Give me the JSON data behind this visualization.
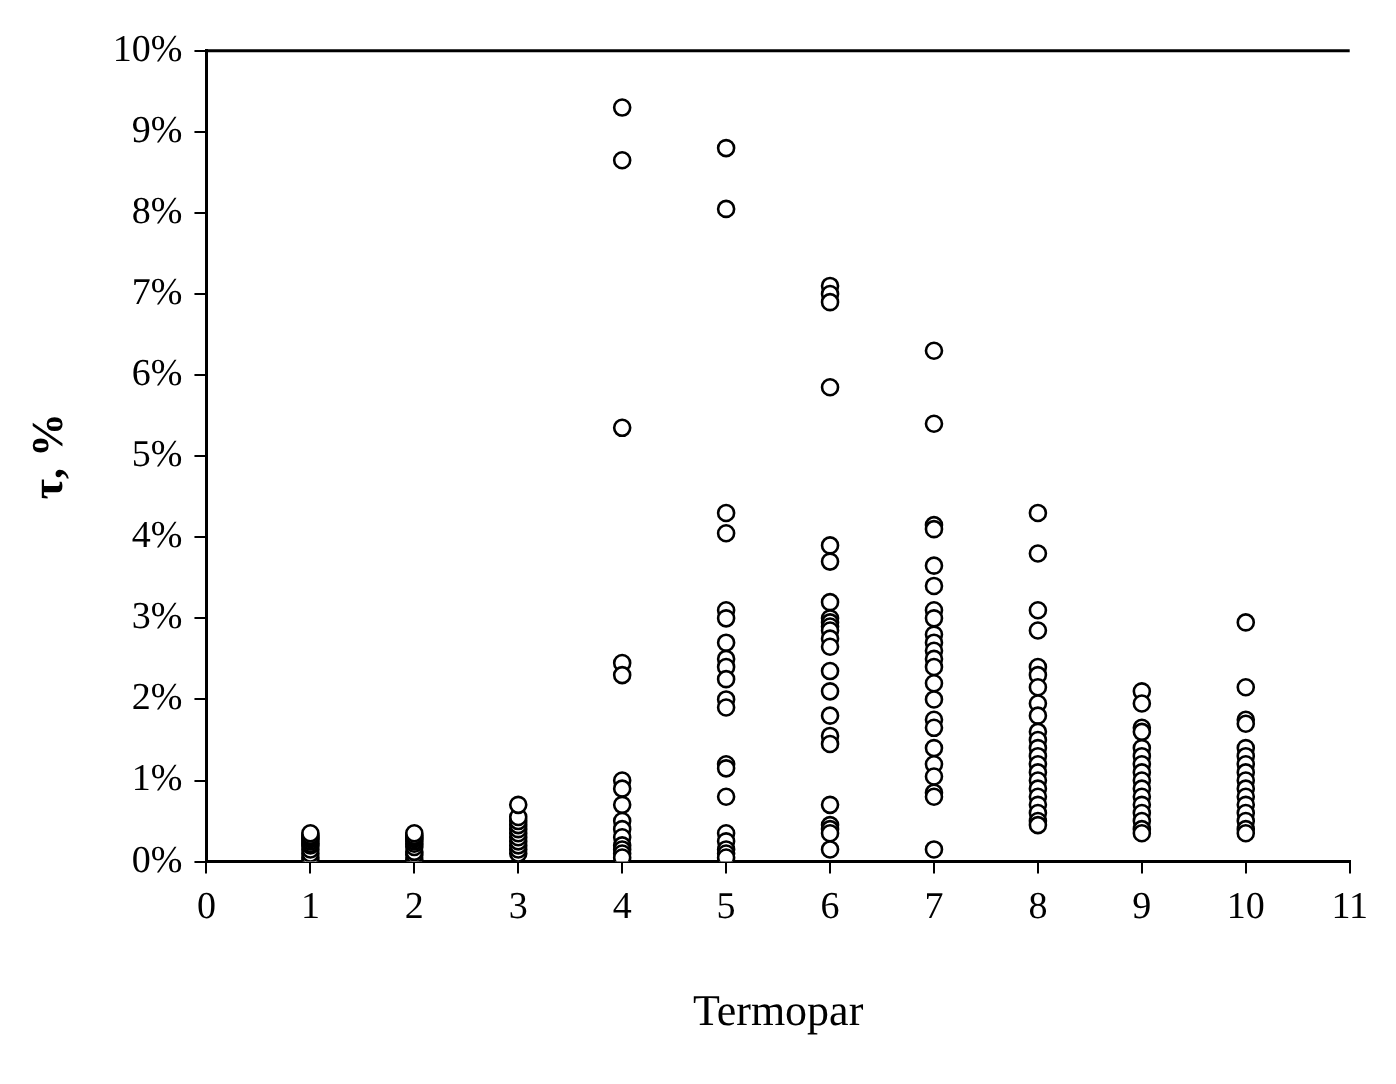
{
  "chart_data": {
    "type": "scatter",
    "xlabel": "Termopar",
    "ylabel": "τ, %",
    "x": [
      1,
      1,
      1,
      1,
      1,
      1,
      1,
      1,
      1,
      1,
      1,
      2,
      2,
      2,
      2,
      2,
      2,
      2,
      2,
      2,
      2,
      3,
      3,
      3,
      3,
      3,
      3,
      3,
      3,
      3,
      3,
      3,
      4,
      4,
      4,
      4,
      4,
      4,
      4,
      4,
      4,
      4,
      4,
      4,
      4,
      4,
      4,
      5,
      5,
      5,
      5,
      5,
      5,
      5,
      5,
      5,
      5,
      5,
      5,
      5,
      5,
      5,
      5,
      5,
      5,
      5,
      5,
      6,
      6,
      6,
      6,
      6,
      6,
      6,
      6,
      6,
      6,
      6,
      6,
      6,
      6,
      6,
      6,
      6,
      6,
      6,
      6,
      6,
      6,
      6,
      7,
      7,
      7,
      7,
      7,
      7,
      7,
      7,
      7,
      7,
      7,
      7,
      7,
      7,
      7,
      7,
      7,
      7,
      7,
      7,
      7,
      7,
      7,
      8,
      8,
      8,
      8,
      8,
      8,
      8,
      8,
      8,
      8,
      8,
      8,
      8,
      8,
      8,
      8,
      8,
      8,
      8,
      8,
      8,
      8,
      9,
      9,
      9,
      9,
      9,
      9,
      9,
      9,
      9,
      9,
      9,
      9,
      9,
      9,
      9,
      9,
      10,
      10,
      10,
      10,
      10,
      10,
      10,
      10,
      10,
      10,
      10,
      10,
      10,
      10,
      10,
      10
    ],
    "series": [
      {
        "color": "#000000",
        "values": [
          0.0,
          0.05,
          0.1,
          0.15,
          0.2,
          0.22,
          0.25,
          0.28,
          0.3,
          0.32,
          0.35,
          0.02,
          0.08,
          0.12,
          0.18,
          0.22,
          0.25,
          0.28,
          0.3,
          0.32,
          0.35,
          0.1,
          0.15,
          0.2,
          0.25,
          0.3,
          0.35,
          0.4,
          0.45,
          0.5,
          0.55,
          0.7,
          9.3,
          8.65,
          5.35,
          2.45,
          2.3,
          1.0,
          0.9,
          0.7,
          0.5,
          0.4,
          0.3,
          0.2,
          0.15,
          0.1,
          0.05,
          8.8,
          8.05,
          4.3,
          4.05,
          3.1,
          3.0,
          2.7,
          2.5,
          2.4,
          2.25,
          2.0,
          1.9,
          1.2,
          1.15,
          0.8,
          0.35,
          0.25,
          0.15,
          0.1,
          0.05,
          7.1,
          7.0,
          6.9,
          5.85,
          3.9,
          3.7,
          3.2,
          3.0,
          2.95,
          2.9,
          2.85,
          2.75,
          2.65,
          2.35,
          2.1,
          1.8,
          1.55,
          1.45,
          0.7,
          0.45,
          0.4,
          0.35,
          0.15,
          6.3,
          5.4,
          4.15,
          4.1,
          3.65,
          3.4,
          3.1,
          3.0,
          2.8,
          2.7,
          2.6,
          2.5,
          2.4,
          2.2,
          2.0,
          1.75,
          1.65,
          1.4,
          1.2,
          1.05,
          0.85,
          0.8,
          0.15,
          4.3,
          3.8,
          3.1,
          2.85,
          2.4,
          2.3,
          2.15,
          1.95,
          1.8,
          1.6,
          1.5,
          1.4,
          1.3,
          1.2,
          1.1,
          1.0,
          0.9,
          0.8,
          0.7,
          0.6,
          0.5,
          0.45,
          2.1,
          1.95,
          1.65,
          1.6,
          1.4,
          1.3,
          1.2,
          1.1,
          1.0,
          0.9,
          0.8,
          0.7,
          0.6,
          0.5,
          0.4,
          0.35,
          2.95,
          2.15,
          1.75,
          1.7,
          1.4,
          1.3,
          1.2,
          1.1,
          1.0,
          0.9,
          0.8,
          0.7,
          0.6,
          0.5,
          0.4,
          0.35
        ]
      }
    ],
    "xlim": [
      0,
      11
    ],
    "xticks": [
      0,
      1,
      2,
      3,
      4,
      5,
      6,
      7,
      8,
      9,
      10,
      11
    ],
    "ylim": [
      0,
      10
    ],
    "yticks": [
      {
        "value": 0,
        "label": "0%"
      },
      {
        "value": 1,
        "label": "1%"
      },
      {
        "value": 2,
        "label": "2%"
      },
      {
        "value": 3,
        "label": "3%"
      },
      {
        "value": 4,
        "label": "4%"
      },
      {
        "value": 5,
        "label": "5%"
      },
      {
        "value": 6,
        "label": "6%"
      },
      {
        "value": 7,
        "label": "7%"
      },
      {
        "value": 8,
        "label": "8%"
      },
      {
        "value": 9,
        "label": "9%"
      },
      {
        "value": 10,
        "label": "10%"
      }
    ],
    "marker": "circle",
    "grid": false,
    "legend": false
  }
}
